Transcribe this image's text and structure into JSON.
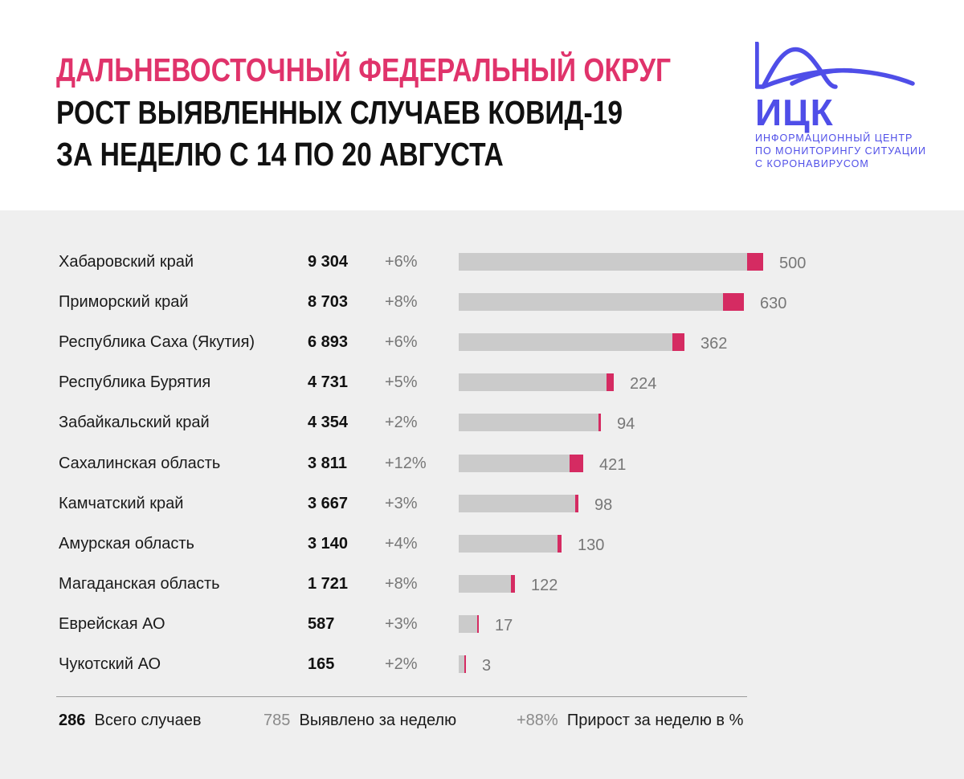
{
  "header": {
    "title_line1": "ДАЛЬНЕВОСТОЧНЫЙ ФЕДЕРАЛЬНЫЙ ОКРУГ",
    "title_line2": "РОСТ ВЫЯВЛЕННЫХ СЛУЧАЕВ КОВИД-19",
    "title_line3": "ЗА НЕДЕЛЮ С 14 ПО 20 АВГУСТА"
  },
  "logo": {
    "name": "ИЦК",
    "tagline": [
      "ИНФОРМАЦИОННЫЙ ЦЕНТР",
      "ПО МОНИТОРИНГУ СИТУАЦИИ",
      "С КОРОНАВИРУСОМ"
    ],
    "icon": "wave-curve-icon"
  },
  "colors": {
    "accent": "#e0336b",
    "bar_new": "#d52b62",
    "bar_prev": "#cbcbcb",
    "logo": "#4f4ee8",
    "panel": "#efefef"
  },
  "chart_data": {
    "type": "bar",
    "orientation": "horizontal",
    "stacked": true,
    "title": "РОСТ ВЫЯВЛЕННЫХ СЛУЧАЕВ КОВИД-19 ЗА НЕДЕЛЮ С 14 ПО 20 АВГУСТА",
    "categories": [
      "Хабаровский край",
      "Приморский край",
      "Республика Саха (Якутия)",
      "Республика Бурятия",
      "Забайкальский край",
      "Сахалинская область",
      "Камчатский край",
      "Амурская область",
      "Магаданская область",
      "Еврейская АО",
      "Чукотский АО"
    ],
    "totals": [
      9304,
      8703,
      6893,
      4731,
      4354,
      3811,
      3667,
      3140,
      1721,
      587,
      165
    ],
    "totals_display": [
      "9 304",
      "8 703",
      "6 893",
      "4 731",
      "4 354",
      "3 811",
      "3 667",
      "3 140",
      "1 721",
      "587",
      "165"
    ],
    "growth_display": [
      "+6%",
      "+8%",
      "+6%",
      "+5%",
      "+2%",
      "+12%",
      "+3%",
      "+4%",
      "+8%",
      "+3%",
      "+2%"
    ],
    "series": [
      {
        "name": "Всего случаев (до недели)",
        "values": [
          8804,
          8073,
          6531,
          4507,
          4260,
          3390,
          3569,
          3010,
          1599,
          570,
          162
        ]
      },
      {
        "name": "Выявлено за неделю",
        "values": [
          500,
          630,
          362,
          224,
          94,
          421,
          98,
          130,
          122,
          17,
          3
        ]
      }
    ],
    "xlim": [
      0,
      9304
    ],
    "legend": [
      {
        "value": "286",
        "label": "Всего случаев"
      },
      {
        "value": "785",
        "label": "Выявлено за неделю"
      },
      {
        "value": "+88%",
        "label": "Прирост за неделю в %"
      }
    ]
  }
}
